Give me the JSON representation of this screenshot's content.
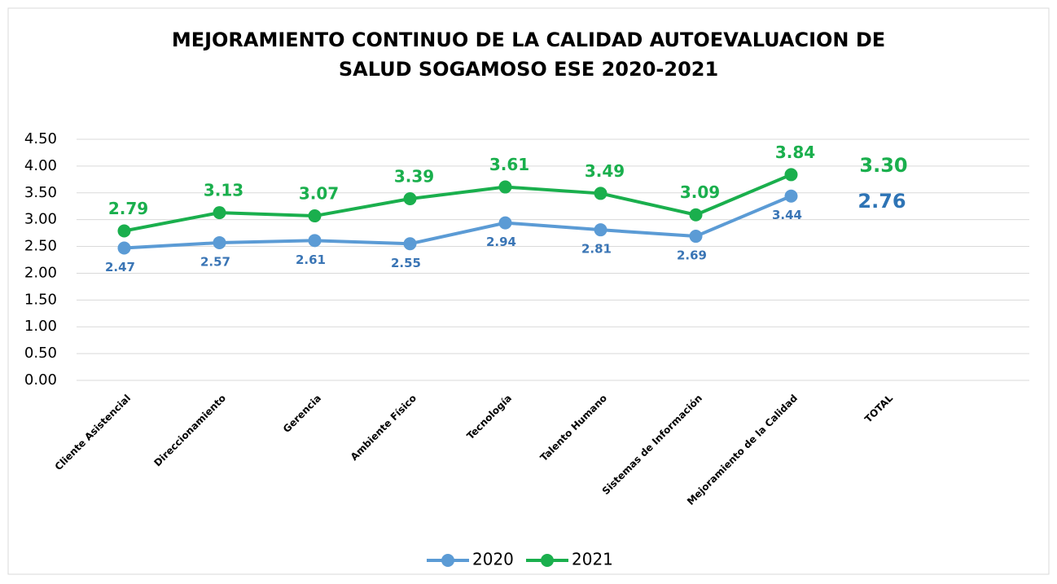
{
  "chart_data": {
    "type": "line",
    "title": [
      "MEJORAMIENTO CONTINUO DE LA CALIDAD AUTOEVALUACION DE",
      "SALUD SOGAMOSO ESE  2020-2021"
    ],
    "categories": [
      "Cliente Asistencial",
      "Direccionamiento",
      "Gerencia",
      "Ambiente Físico",
      "Tecnología",
      "Talento  Humano",
      "Sistemas de Información",
      "Mejoramiento de la Calidad",
      "TOTAL",
      null
    ],
    "series": [
      {
        "name": "2020",
        "color": "#5b9bd5",
        "label_color": "#3a75b5",
        "values": [
          2.47,
          2.57,
          2.61,
          2.55,
          2.94,
          2.81,
          2.69,
          3.44,
          null,
          null
        ]
      },
      {
        "name": "2021",
        "color": "#1aaf4d",
        "label_color": "#1aaf4d",
        "values": [
          2.79,
          3.13,
          3.07,
          3.39,
          3.61,
          3.49,
          3.09,
          3.84,
          null,
          null
        ]
      }
    ],
    "annotations": [
      {
        "text": "3.30",
        "color": "#1aaf4d"
      },
      {
        "text": "2.76",
        "color": "#2e74b5"
      }
    ],
    "ylim": [
      0,
      4.5
    ],
    "yticks": [
      {
        "value": 0,
        "label": "0.00"
      },
      {
        "value": 0.5,
        "label": "0.50"
      },
      {
        "value": 1,
        "label": "1.00"
      },
      {
        "value": 1.5,
        "label": "1.50"
      },
      {
        "value": 2,
        "label": "2.00"
      },
      {
        "value": 2.5,
        "label": "2.50"
      },
      {
        "value": 3,
        "label": "3.00"
      },
      {
        "value": 3.5,
        "label": "3.50"
      },
      {
        "value": 4,
        "label": "4.00"
      },
      {
        "value": 4.5,
        "label": "4.50"
      }
    ],
    "grid": true,
    "legend": "bottom"
  }
}
